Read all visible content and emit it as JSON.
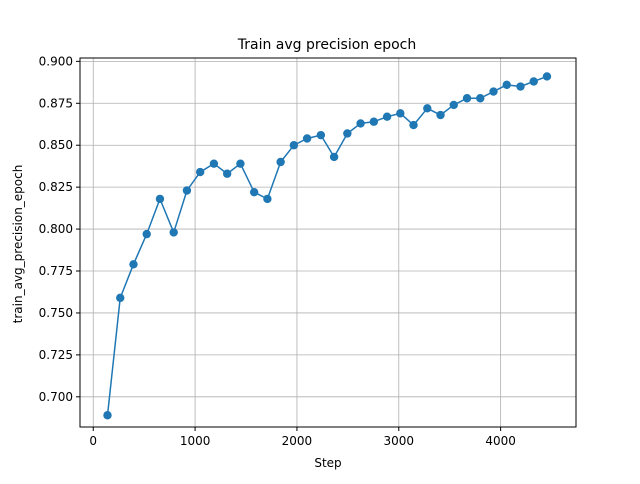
{
  "chart_data": {
    "type": "line",
    "title": "Train avg precision epoch",
    "xlabel": "Step",
    "ylabel": "train_avg_precision_epoch",
    "xlim": [
      -130,
      4740
    ],
    "ylim": [
      0.682,
      0.902
    ],
    "xticks": [
      0,
      1000,
      2000,
      3000,
      4000
    ],
    "yticks": [
      0.7,
      0.725,
      0.75,
      0.775,
      0.8,
      0.825,
      0.85,
      0.875,
      0.9
    ],
    "grid": true,
    "series": [
      {
        "name": "train_avg_precision_epoch",
        "color": "#1f77b4",
        "marker": "circle",
        "x": [
          140,
          265,
          395,
          525,
          655,
          790,
          920,
          1050,
          1185,
          1315,
          1445,
          1580,
          1710,
          1840,
          1970,
          2100,
          2235,
          2365,
          2495,
          2625,
          2755,
          2885,
          3015,
          3145,
          3280,
          3410,
          3540,
          3670,
          3800,
          3930,
          4060,
          4195,
          4325,
          4455
        ],
        "y": [
          0.689,
          0.759,
          0.779,
          0.797,
          0.818,
          0.798,
          0.823,
          0.834,
          0.839,
          0.833,
          0.839,
          0.822,
          0.818,
          0.84,
          0.85,
          0.854,
          0.856,
          0.843,
          0.857,
          0.863,
          0.864,
          0.867,
          0.869,
          0.862,
          0.872,
          0.868,
          0.874,
          0.878,
          0.878,
          0.882,
          0.886,
          0.885,
          0.888,
          0.891
        ]
      }
    ]
  },
  "styles": {
    "series_color": "#1f77b4",
    "grid_color": "#b0b0b0",
    "axis_color": "#000000"
  }
}
